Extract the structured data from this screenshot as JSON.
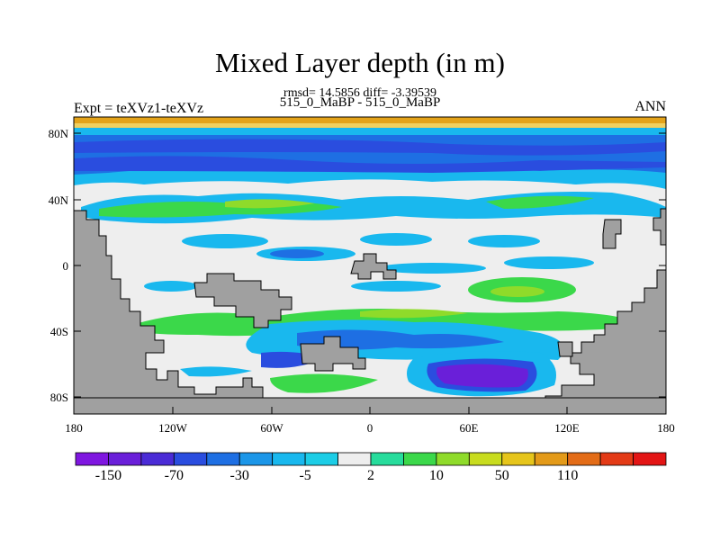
{
  "title": "Mixed Layer depth (in m)",
  "stats": "rmsd= 14.5856 diff= -3.39539",
  "subtitle": "515_0_MaBP - 515_0_MaBP",
  "left_label": "Expt = teXVz1-teXVz",
  "right_label": "ANN",
  "lat_ticks": [
    "80N",
    "40N",
    "0",
    "40S",
    "80S"
  ],
  "lon_ticks": [
    "180",
    "120W",
    "60W",
    "0",
    "60E",
    "120E",
    "180"
  ],
  "colorbar": {
    "colors": [
      "#7f16e0",
      "#6a1fd9",
      "#4a2bd6",
      "#2a4ddf",
      "#1e6fe3",
      "#1b96e8",
      "#19b8ee",
      "#1ccde6",
      "#eeeeee",
      "#27dc9c",
      "#3bd84a",
      "#8fdb2a",
      "#c8dc1e",
      "#e6c51b",
      "#e39a19",
      "#e36c17",
      "#e33a16",
      "#e31515"
    ],
    "labels": [
      "-150",
      "-70",
      "-30",
      "-5",
      "2",
      "10",
      "50",
      "110"
    ]
  },
  "colors": {
    "land": "#a0a0a0",
    "ocean_neutral": "#eeeeee"
  }
}
